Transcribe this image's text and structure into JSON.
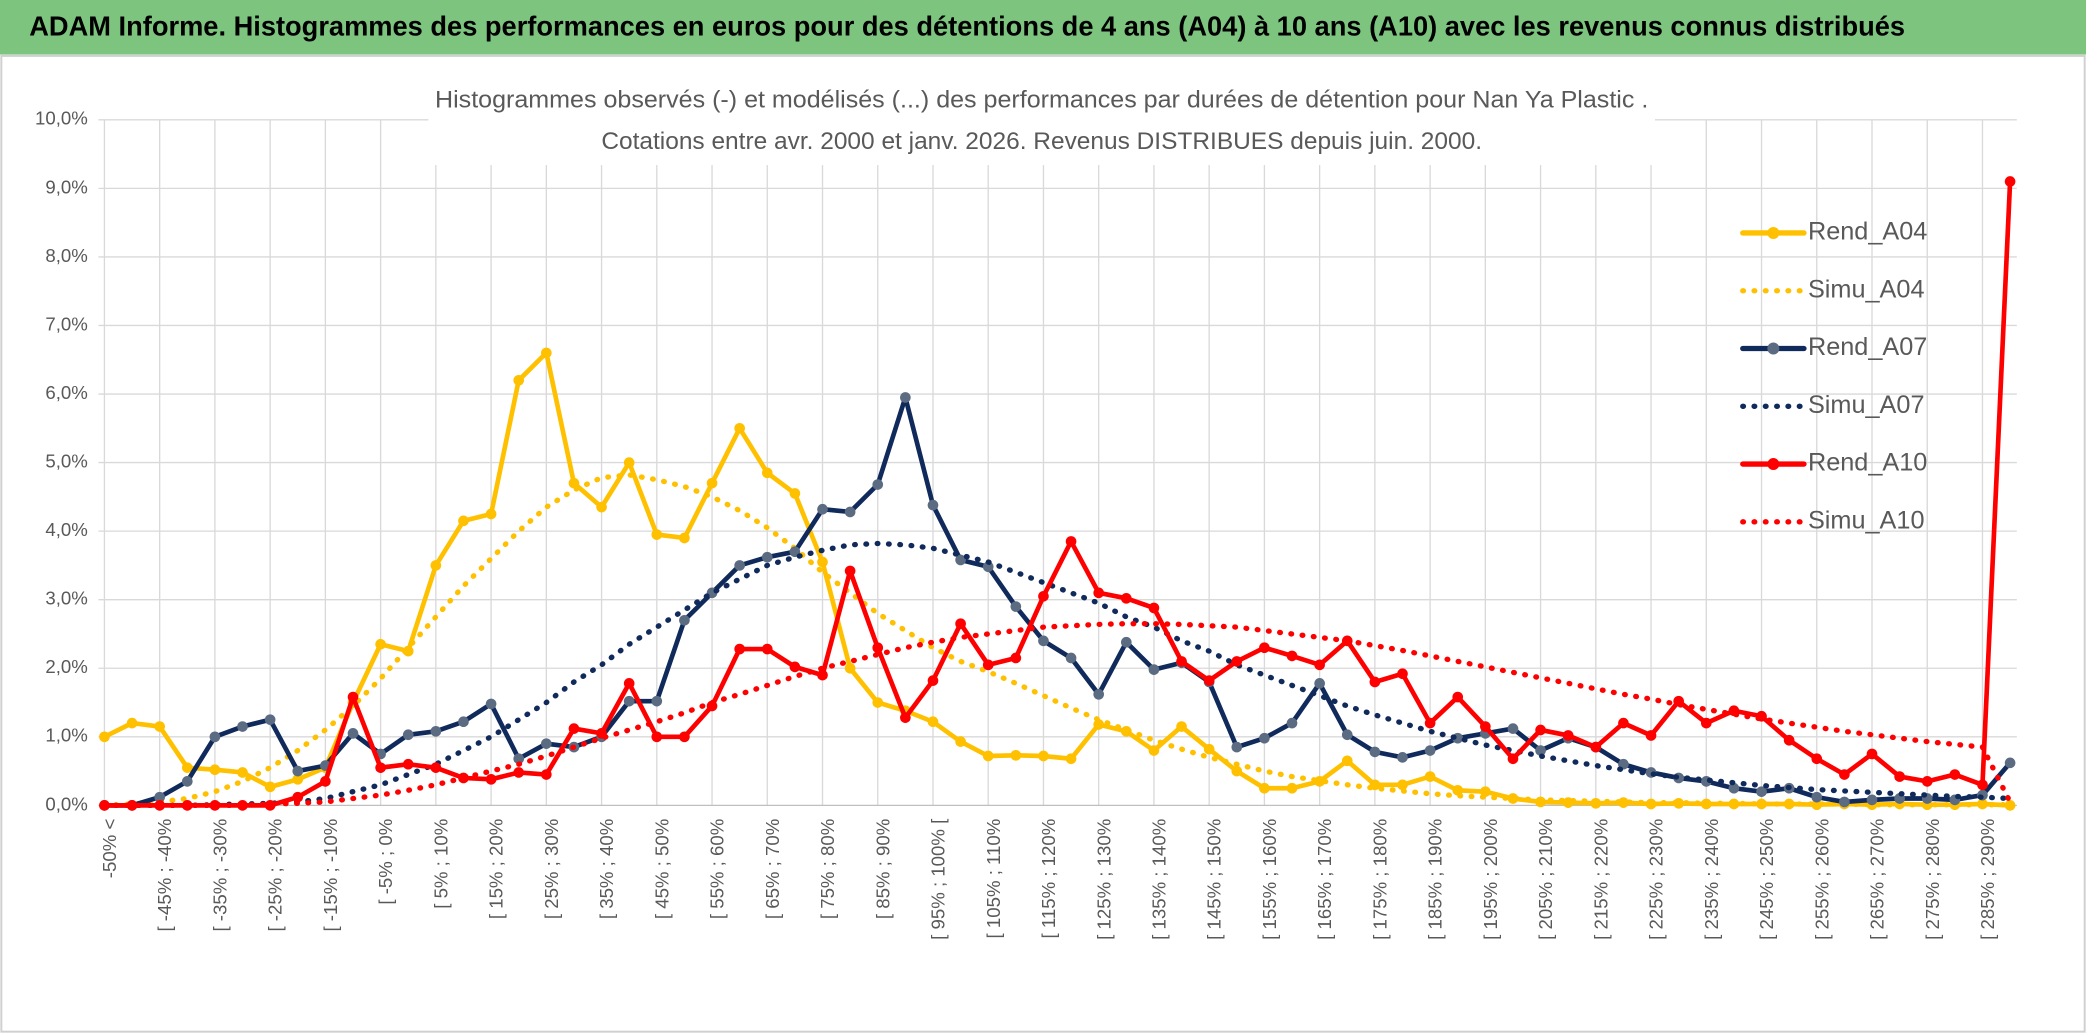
{
  "header": {
    "title": "ADAM Informe. Histogrammes des performances en euros pour des détentions de 4 ans (A04) à 10 ans (A10) avec les revenus connus distribués"
  },
  "chart_data": {
    "type": "line",
    "title": "Histogrammes observés (-) et modélisés (...) des performances par durées de détention pour Nan Ya Plastic .",
    "subtitle": "Cotations entre avr. 2000 et janv. 2026. Revenus DISTRIBUES depuis juin. 2000.",
    "categories": [
      "-50% <",
      null,
      "[ -45% ; -40%",
      null,
      "[ -35% ; -30%",
      null,
      "[ -25% ; -20%",
      null,
      "[ -15% ; -10%",
      null,
      "[ -5% ; 0%",
      null,
      "[ 5% ; 10%",
      null,
      "[ 15% ; 20%",
      null,
      "[ 25% ; 30%",
      null,
      "[ 35% ; 40%",
      null,
      "[ 45% ; 50%",
      null,
      "[ 55% ; 60%",
      null,
      "[ 65% ; 70%",
      null,
      "[ 75% ; 80%",
      null,
      "[ 85% ; 90%",
      null,
      "[ 95% ; 100% [",
      null,
      "[ 105% ; 110%",
      null,
      "[ 115% ; 120%",
      null,
      "[ 125% ; 130%",
      null,
      "[ 135% ; 140%",
      null,
      "[ 145% ; 150%",
      null,
      "[ 155% ; 160%",
      null,
      "[ 165% ; 170%",
      null,
      "[ 175% ; 180%",
      null,
      "[ 185% ; 190%",
      null,
      "[ 195% ; 200%",
      null,
      "[ 205% ; 210%",
      null,
      "[ 215% ; 220%",
      null,
      "[ 225% ; 230%",
      null,
      "[ 235% ; 240%",
      null,
      "[ 245% ; 250%",
      null,
      "[ 255% ; 260%",
      null,
      "[ 265% ; 270%",
      null,
      "[ 275% ; 280%",
      null,
      "[ 285% ; 290%",
      null
    ],
    "ylim": [
      0,
      10
    ],
    "yticks": [
      {
        "value": 0,
        "label": "0,0%"
      },
      {
        "value": 1,
        "label": "1,0%"
      },
      {
        "value": 2,
        "label": "2,0%"
      },
      {
        "value": 3,
        "label": "3,0%"
      },
      {
        "value": 4,
        "label": "4,0%"
      },
      {
        "value": 5,
        "label": "5,0%"
      },
      {
        "value": 6,
        "label": "6,0%"
      },
      {
        "value": 7,
        "label": "7,0%"
      },
      {
        "value": 8,
        "label": "8,0%"
      },
      {
        "value": 9,
        "label": "9,0%"
      },
      {
        "value": 10,
        "label": "10,0%"
      }
    ],
    "grid": true,
    "legend": "right",
    "series": [
      {
        "name": "Rend_A04",
        "color": "#ffc000",
        "style": "solid",
        "marker_color": "#ffc000",
        "values": [
          1.0,
          1.2,
          1.15,
          0.55,
          0.52,
          0.48,
          0.27,
          0.38,
          0.55,
          1.5,
          2.35,
          2.25,
          3.5,
          4.15,
          4.25,
          6.2,
          6.6,
          4.7,
          4.35,
          5.0,
          3.95,
          3.9,
          4.7,
          5.5,
          4.85,
          4.55,
          3.55,
          2.0,
          1.5,
          1.38,
          1.22,
          0.93,
          0.72,
          0.73,
          0.72,
          0.68,
          1.18,
          1.08,
          0.8,
          1.15,
          0.82,
          0.5,
          0.25,
          0.25,
          0.35,
          0.65,
          0.3,
          0.3,
          0.42,
          0.22,
          0.2,
          0.1,
          0.05,
          0.04,
          0.03,
          0.04,
          0.02,
          0.03,
          0.02,
          0.02,
          0.02,
          0.02,
          0.01,
          0.02,
          0.01,
          0.02,
          0.01,
          0.01,
          0.02,
          0.0
        ]
      },
      {
        "name": "Simu_A04",
        "color": "#ffc000",
        "style": "dotted",
        "values": [
          0,
          0.02,
          0.05,
          0.1,
          0.2,
          0.35,
          0.55,
          0.8,
          1.1,
          1.45,
          1.85,
          2.3,
          2.75,
          3.2,
          3.6,
          4.0,
          4.35,
          4.6,
          4.78,
          4.82,
          4.75,
          4.65,
          4.5,
          4.3,
          4.05,
          3.75,
          3.4,
          3.1,
          2.8,
          2.55,
          2.3,
          2.1,
          1.95,
          1.78,
          1.6,
          1.42,
          1.25,
          1.1,
          0.95,
          0.82,
          0.7,
          0.6,
          0.5,
          0.42,
          0.36,
          0.3,
          0.25,
          0.21,
          0.17,
          0.14,
          0.12,
          0.1,
          0.08,
          0.07,
          0.06,
          0.05,
          0.04,
          0.04,
          0.03,
          0.03,
          0.02,
          0.02,
          0.02,
          0.02,
          0.01,
          0.01,
          0.01,
          0.01,
          0.01,
          0.01
        ]
      },
      {
        "name": "Rend_A07",
        "color": "#102a5c",
        "style": "solid",
        "marker_color": "#5b6b82",
        "values": [
          0,
          0,
          0.12,
          0.35,
          1.0,
          1.15,
          1.25,
          0.5,
          0.58,
          1.05,
          0.75,
          1.03,
          1.08,
          1.22,
          1.48,
          0.68,
          0.9,
          0.85,
          1.0,
          1.52,
          1.52,
          2.7,
          3.1,
          3.5,
          3.62,
          3.7,
          4.32,
          4.28,
          4.68,
          5.95,
          4.38,
          3.58,
          3.48,
          2.9,
          2.4,
          2.15,
          1.62,
          2.38,
          1.98,
          2.08,
          1.8,
          0.85,
          0.98,
          1.2,
          1.78,
          1.03,
          0.78,
          0.7,
          0.8,
          0.98,
          1.05,
          1.12,
          0.8,
          0.98,
          0.85,
          0.6,
          0.48,
          0.4,
          0.35,
          0.25,
          0.2,
          0.25,
          0.12,
          0.05,
          0.08,
          0.1,
          0.1,
          0.08,
          0.15,
          0.62
        ]
      },
      {
        "name": "Simu_A07",
        "color": "#102a5c",
        "style": "dotted",
        "values": [
          0,
          0,
          0,
          0,
          0.01,
          0.02,
          0.03,
          0.05,
          0.1,
          0.2,
          0.3,
          0.45,
          0.6,
          0.8,
          1.0,
          1.25,
          1.5,
          1.8,
          2.05,
          2.35,
          2.6,
          2.85,
          3.1,
          3.3,
          3.5,
          3.62,
          3.72,
          3.8,
          3.82,
          3.8,
          3.75,
          3.65,
          3.55,
          3.4,
          3.25,
          3.1,
          2.95,
          2.75,
          2.6,
          2.4,
          2.25,
          2.05,
          1.9,
          1.75,
          1.6,
          1.45,
          1.32,
          1.2,
          1.08,
          0.98,
          0.88,
          0.8,
          0.72,
          0.65,
          0.58,
          0.52,
          0.46,
          0.41,
          0.37,
          0.33,
          0.29,
          0.26,
          0.23,
          0.21,
          0.19,
          0.17,
          0.15,
          0.13,
          0.12,
          0.1
        ]
      },
      {
        "name": "Rend_A10",
        "color": "#ff0000",
        "style": "solid",
        "marker_color": "#ff0000",
        "values": [
          0,
          0,
          0,
          0,
          0,
          0,
          0,
          0.12,
          0.35,
          1.58,
          0.55,
          0.6,
          0.55,
          0.4,
          0.38,
          0.48,
          0.45,
          1.12,
          1.05,
          1.78,
          1.0,
          1.0,
          1.45,
          2.28,
          2.28,
          2.02,
          1.9,
          3.42,
          2.3,
          1.28,
          1.82,
          2.65,
          2.05,
          2.15,
          3.05,
          3.85,
          3.1,
          3.02,
          2.88,
          2.1,
          1.82,
          2.1,
          2.3,
          2.18,
          2.05,
          2.4,
          1.8,
          1.92,
          1.2,
          1.58,
          1.15,
          0.68,
          1.1,
          1.02,
          0.85,
          1.2,
          1.02,
          1.52,
          1.2,
          1.38,
          1.3,
          0.95,
          0.68,
          0.45,
          0.75,
          0.42,
          0.35,
          0.45,
          0.3,
          9.1
        ]
      },
      {
        "name": "Simu_A10",
        "color": "#ff0000",
        "style": "dotted",
        "values": [
          0,
          0,
          0,
          0,
          0,
          0,
          0.02,
          0.03,
          0.05,
          0.1,
          0.15,
          0.22,
          0.3,
          0.4,
          0.5,
          0.6,
          0.72,
          0.85,
          0.98,
          1.1,
          1.22,
          1.35,
          1.5,
          1.62,
          1.75,
          1.88,
          2.0,
          2.1,
          2.2,
          2.3,
          2.38,
          2.45,
          2.5,
          2.55,
          2.6,
          2.62,
          2.64,
          2.65,
          2.65,
          2.64,
          2.62,
          2.6,
          2.55,
          2.5,
          2.45,
          2.4,
          2.33,
          2.26,
          2.18,
          2.1,
          2.02,
          1.94,
          1.86,
          1.78,
          1.7,
          1.62,
          1.55,
          1.47,
          1.4,
          1.33,
          1.26,
          1.2,
          1.14,
          1.08,
          1.03,
          0.98,
          0.93,
          0.89,
          0.85,
          0.05
        ]
      }
    ]
  }
}
